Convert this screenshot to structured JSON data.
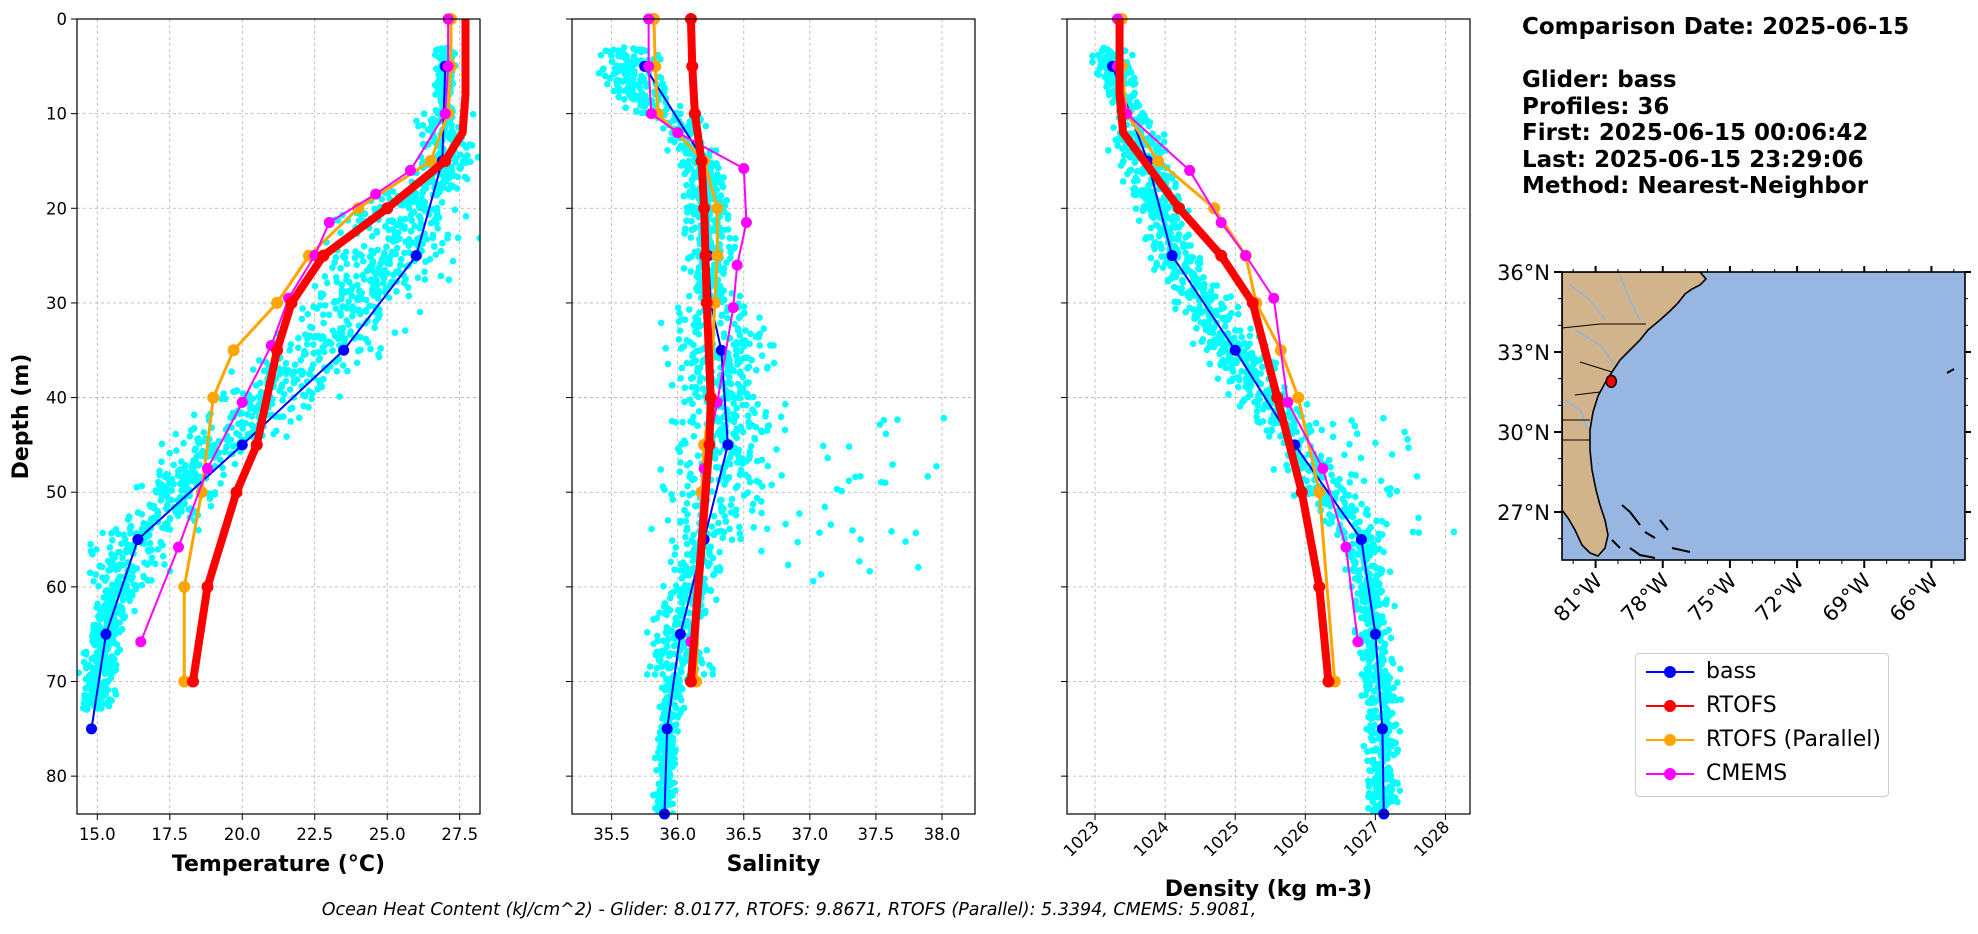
{
  "info": {
    "comparison_date": "Comparison Date: 2025-06-15",
    "glider": "Glider: bass",
    "profiles": "Profiles: 36",
    "first": "First: 2025-06-15 00:06:42",
    "last": "Last: 2025-06-15 23:29:06",
    "method": "Method: Nearest-Neighbor"
  },
  "footer": "Ocean Heat Content (kJ/cm^2) - Glider: 8.0177,  RTOFS: 9.8671,  RTOFS (Parallel): 5.3394,  CMEMS: 5.9081,",
  "colors": {
    "glider": "#0000ff",
    "rtofs": "#ff0000",
    "rtofs_parallel": "#ffa500",
    "cmems": "#ff00ff",
    "raw": "#00ffff",
    "land": "#d2b48c",
    "ocean": "#98b6e2"
  },
  "legend": [
    {
      "label": "bass",
      "color": "#0000ff"
    },
    {
      "label": "RTOFS",
      "color": "#ff0000"
    },
    {
      "label": "RTOFS (Parallel)",
      "color": "#ffa500"
    },
    {
      "label": "CMEMS",
      "color": "#ff00ff"
    }
  ],
  "chart_data": [
    {
      "type": "line",
      "xlabel": "Temperature (°C)",
      "ylabel": "Depth (m)",
      "xlim": [
        14.3,
        28.2
      ],
      "ylim": [
        84,
        0
      ],
      "xticks": [
        15.0,
        17.5,
        20.0,
        22.5,
        25.0,
        27.5
      ],
      "yticks": [
        0,
        10,
        20,
        30,
        40,
        50,
        60,
        70,
        80
      ],
      "grid": true,
      "series": [
        {
          "name": "bass",
          "x": [
            27.0,
            26.9,
            26.0,
            23.5,
            20.0,
            16.4,
            15.3,
            14.8
          ],
          "y": [
            5,
            15,
            25,
            35,
            45,
            55,
            65,
            75
          ]
        },
        {
          "name": "RTOFS",
          "x": [
            27.7,
            27.7,
            27.7,
            27.6,
            27.0,
            25.0,
            22.8,
            21.7,
            21.2,
            20.5,
            19.8,
            18.8,
            18.3
          ],
          "y": [
            0,
            5,
            8,
            12,
            15,
            20,
            25,
            30,
            35,
            45,
            50,
            60,
            70
          ]
        },
        {
          "name": "RTOFS (Parallel)",
          "x": [
            27.2,
            27.2,
            27.1,
            26.5,
            24.0,
            22.3,
            21.2,
            19.7,
            19.0,
            18.6,
            18.0,
            18.0
          ],
          "y": [
            0,
            5,
            10,
            15,
            20,
            25,
            30,
            35,
            40,
            50,
            60,
            70
          ]
        },
        {
          "name": "CMEMS",
          "x": [
            27.1,
            27.1,
            27.0,
            25.8,
            24.6,
            23.0,
            22.5,
            21.6,
            21.0,
            20.0,
            18.8,
            17.8,
            16.5
          ],
          "y": [
            0,
            5,
            10,
            16,
            18.5,
            21.5,
            25,
            29.5,
            34.5,
            40.5,
            47.5,
            55.8,
            65.8
          ]
        }
      ]
    },
    {
      "type": "line",
      "xlabel": "Salinity",
      "xlim": [
        35.2,
        38.25
      ],
      "ylim": [
        84,
        0
      ],
      "xticks": [
        35.5,
        36.0,
        36.5,
        37.0,
        37.5,
        38.0
      ],
      "grid": true,
      "series": [
        {
          "name": "bass",
          "x": [
            35.75,
            36.2,
            36.23,
            36.25,
            36.33,
            36.38,
            36.2,
            36.02,
            35.92,
            35.9
          ],
          "y": [
            5,
            15,
            25,
            30,
            35,
            45,
            55,
            65,
            75,
            84
          ]
        },
        {
          "name": "RTOFS",
          "x": [
            36.1,
            36.11,
            36.13,
            36.18,
            36.2,
            36.21,
            36.22,
            36.25,
            36.24,
            36.1
          ],
          "y": [
            0,
            5,
            10,
            15,
            20,
            25,
            30,
            40,
            45,
            70
          ]
        },
        {
          "name": "RTOFS (Parallel)",
          "x": [
            35.82,
            35.83,
            35.85,
            36.2,
            36.3,
            36.3,
            36.28,
            36.25,
            36.2,
            36.18,
            36.14
          ],
          "y": [
            0,
            5,
            10,
            15,
            20,
            25,
            30,
            40,
            45,
            50,
            70
          ]
        },
        {
          "name": "CMEMS",
          "x": [
            35.78,
            35.78,
            35.8,
            36.0,
            36.5,
            36.52,
            36.45,
            36.42,
            36.3,
            36.2,
            36.1
          ],
          "y": [
            0,
            5,
            10,
            12,
            15.8,
            21.5,
            26,
            30.5,
            40.5,
            47.5,
            65.8
          ]
        }
      ]
    },
    {
      "type": "line",
      "xlabel": "Density (kg m-3)",
      "xlim": [
        1022.6,
        1028.35
      ],
      "ylim": [
        84,
        0
      ],
      "xticks": [
        1023,
        1024,
        1025,
        1026,
        1027,
        1028
      ],
      "grid": true,
      "series": [
        {
          "name": "bass",
          "x": [
            1023.25,
            1023.75,
            1024.1,
            1025.0,
            1025.85,
            1026.8,
            1027.0,
            1027.1,
            1027.12
          ],
          "y": [
            5,
            15,
            25,
            35,
            45,
            55,
            65,
            75,
            84
          ]
        },
        {
          "name": "RTOFS",
          "x": [
            1023.35,
            1023.35,
            1023.35,
            1023.4,
            1024.2,
            1024.8,
            1025.25,
            1025.6,
            1025.95,
            1026.2,
            1026.33
          ],
          "y": [
            0,
            5,
            8,
            12,
            20,
            25,
            30,
            40,
            50,
            60,
            70
          ]
        },
        {
          "name": "RTOFS (Parallel)",
          "x": [
            1023.38,
            1023.38,
            1023.45,
            1023.9,
            1024.7,
            1025.15,
            1025.3,
            1025.65,
            1025.9,
            1026.2,
            1026.42
          ],
          "y": [
            0,
            5,
            10,
            15,
            20,
            25,
            30,
            35,
            40,
            50,
            70
          ]
        },
        {
          "name": "CMEMS",
          "x": [
            1023.32,
            1023.32,
            1023.45,
            1024.35,
            1024.8,
            1025.15,
            1025.55,
            1025.75,
            1026.25,
            1026.58,
            1026.75
          ],
          "y": [
            0,
            5,
            10,
            16,
            21.5,
            25,
            29.5,
            40.5,
            47.5,
            55.8,
            65.8
          ]
        }
      ]
    },
    {
      "type": "map",
      "lon_range": [
        -82.5,
        -64.5
      ],
      "lat_range": [
        25.2,
        36.0
      ],
      "xticks": [
        "81°W",
        "78°W",
        "75°W",
        "72°W",
        "69°W",
        "66°W"
      ],
      "xtick_values": [
        -81,
        -78,
        -75,
        -72,
        -69,
        -66
      ],
      "yticks": [
        "36°N",
        "33°N",
        "30°N",
        "27°N"
      ],
      "ytick_values": [
        36,
        33,
        30,
        27
      ],
      "marker": {
        "lon": -80.3,
        "lat": 31.9
      }
    }
  ]
}
